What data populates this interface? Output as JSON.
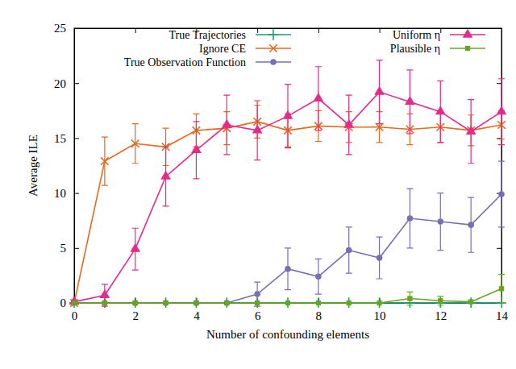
{
  "chart_data": {
    "type": "line",
    "x_label": "Number of confounding elements",
    "y_label": "Average ILE",
    "x": [
      0,
      1,
      2,
      3,
      4,
      5,
      6,
      7,
      8,
      9,
      10,
      11,
      12,
      13,
      14
    ],
    "xlim": [
      0,
      14
    ],
    "xticks": [
      0,
      2,
      4,
      6,
      8,
      10,
      12,
      14
    ],
    "ylim": [
      0,
      25
    ],
    "yticks": [
      0,
      5,
      10,
      15,
      20,
      25
    ],
    "grid": false,
    "legend": "top",
    "series": [
      {
        "name": "True Trajectories",
        "color": "#1b9e77",
        "marker": "plus",
        "values": [
          0,
          0,
          0,
          0,
          0,
          0,
          0,
          0,
          0,
          0,
          0,
          0,
          0,
          0,
          0
        ],
        "errors": [
          0,
          0,
          0,
          0,
          0,
          0,
          0,
          0,
          0,
          0,
          0,
          0,
          0,
          0,
          0
        ]
      },
      {
        "name": "Ignore CE",
        "color": "#e66a1c",
        "marker": "x",
        "values": [
          0,
          12.9,
          14.5,
          14.2,
          15.7,
          15.9,
          16.5,
          15.7,
          16.1,
          16.0,
          16.0,
          15.8,
          16.0,
          15.7,
          16.2
        ],
        "errors": [
          0,
          2.2,
          1.8,
          1.7,
          1.5,
          1.5,
          1.5,
          1.5,
          1.4,
          1.4,
          1.4,
          1.4,
          1.4,
          1.4,
          1.3
        ]
      },
      {
        "name": "True Observation Function",
        "color": "#7570b3",
        "marker": "circle",
        "values": [
          0,
          0,
          0,
          0,
          0,
          0,
          0.8,
          3.1,
          2.4,
          4.8,
          4.1,
          7.7,
          7.4,
          7.1,
          9.9
        ],
        "errors": [
          0,
          0,
          0,
          0,
          0,
          0,
          1.1,
          1.9,
          1.6,
          2.1,
          1.9,
          2.7,
          2.6,
          2.5,
          3.0
        ]
      },
      {
        "name": "Uniform η",
        "color": "#e7298a",
        "marker": "triangle",
        "values": [
          0.1,
          0.7,
          4.9,
          11.5,
          13.9,
          16.2,
          15.7,
          17.0,
          18.6,
          16.2,
          19.2,
          18.3,
          17.4,
          15.6,
          17.4
        ],
        "errors": [
          0.1,
          1.0,
          1.9,
          2.7,
          2.6,
          2.7,
          2.7,
          2.9,
          2.9,
          2.7,
          2.9,
          2.9,
          2.8,
          2.9,
          3.0
        ]
      },
      {
        "name": "Plausible η",
        "color": "#66a61e",
        "marker": "square",
        "values": [
          0,
          0,
          0,
          0,
          0,
          0,
          0,
          0,
          0,
          0,
          0,
          0.4,
          0.2,
          0.1,
          1.3
        ],
        "errors": [
          0,
          0,
          0,
          0,
          0,
          0,
          0,
          0,
          0,
          0,
          0,
          0.6,
          0.4,
          0.1,
          1.3
        ]
      }
    ]
  }
}
